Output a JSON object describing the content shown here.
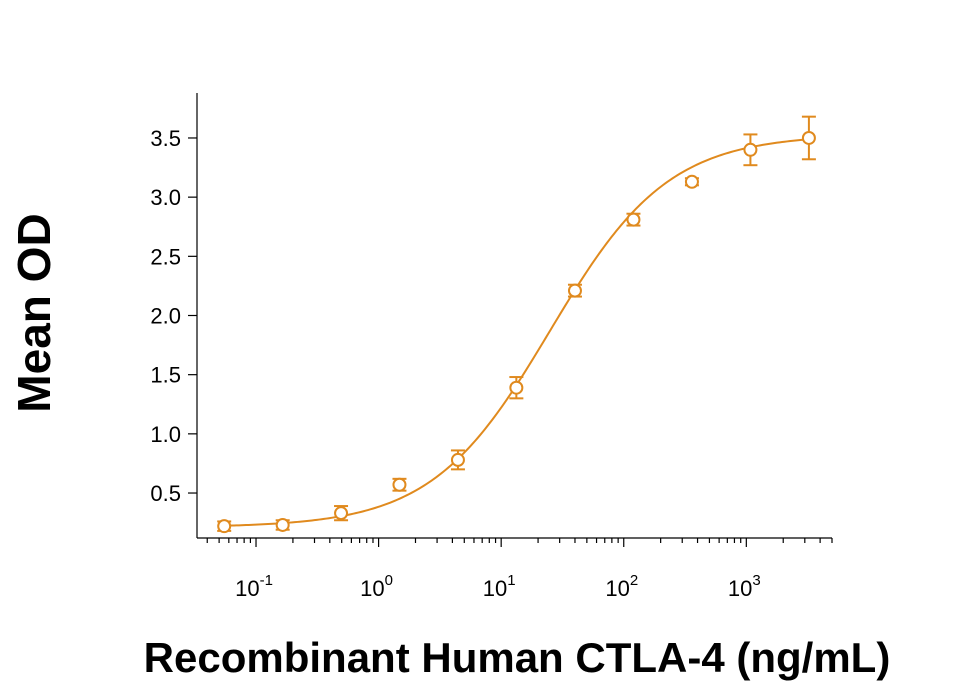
{
  "chart_data": {
    "type": "scatter",
    "title": "",
    "xlabel": "Recombinant Human CTLA-4 (ng/mL)",
    "ylabel": "Mean OD",
    "x_scale": "log",
    "xlim": [
      0.033,
      5000
    ],
    "ylim": [
      0.12,
      3.88
    ],
    "x_ticks": [
      {
        "value": 0.1,
        "base": "10",
        "exp": "-1"
      },
      {
        "value": 1,
        "base": "10",
        "exp": "0"
      },
      {
        "value": 10,
        "base": "10",
        "exp": "1"
      },
      {
        "value": 100,
        "base": "10",
        "exp": "2"
      },
      {
        "value": 1000,
        "base": "10",
        "exp": "3"
      }
    ],
    "y_ticks": [
      {
        "value": 0.5,
        "label": "0.5"
      },
      {
        "value": 1.0,
        "label": "1.0"
      },
      {
        "value": 1.5,
        "label": "1.5"
      },
      {
        "value": 2.0,
        "label": "2.0"
      },
      {
        "value": 2.5,
        "label": "2.5"
      },
      {
        "value": 3.0,
        "label": "3.0"
      },
      {
        "value": 3.5,
        "label": "3.5"
      }
    ],
    "grid": false,
    "color": "#e08a1e",
    "points": [
      {
        "x": 0.055,
        "y": 0.22,
        "err": 0.04
      },
      {
        "x": 0.165,
        "y": 0.23,
        "err": 0.04
      },
      {
        "x": 0.494,
        "y": 0.33,
        "err": 0.06
      },
      {
        "x": 1.48,
        "y": 0.57,
        "err": 0.05
      },
      {
        "x": 4.44,
        "y": 0.78,
        "err": 0.08
      },
      {
        "x": 13.3,
        "y": 1.39,
        "err": 0.09
      },
      {
        "x": 40.0,
        "y": 2.21,
        "err": 0.05
      },
      {
        "x": 120,
        "y": 2.81,
        "err": 0.05
      },
      {
        "x": 360,
        "y": 3.13,
        "err": 0.03
      },
      {
        "x": 1080,
        "y": 3.4,
        "err": 0.13
      },
      {
        "x": 3240,
        "y": 3.5,
        "err": 0.18
      }
    ],
    "fit": {
      "type": "4PL",
      "bottom": 0.21,
      "top": 3.53,
      "ec50": 25,
      "hill": 0.9
    }
  }
}
